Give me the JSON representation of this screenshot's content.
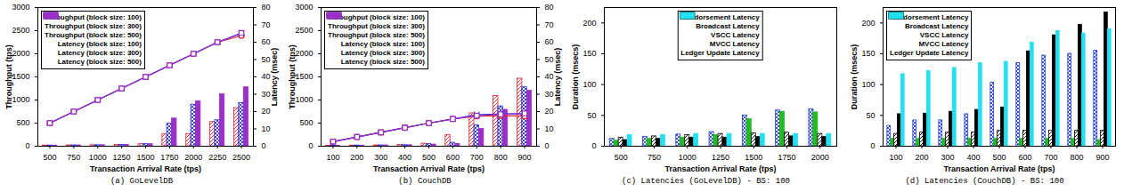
{
  "chart_data": [
    {
      "type": "line",
      "title": "(a) GoLevelDB",
      "x_label": "Transaction Arrival Rate (tps)",
      "y_label": "Throughput (tps)",
      "y2_label": "Latency (msec)",
      "categories": [
        "500",
        "750",
        "1000",
        "1250",
        "1500",
        "1750",
        "2000",
        "2250",
        "2500"
      ],
      "ylim": [
        0,
        3000
      ],
      "yticks": [
        0,
        500,
        1000,
        1500,
        2000,
        2500,
        3000
      ],
      "y2lim": [
        0,
        80
      ],
      "y2ticks": [
        0,
        10,
        20,
        30,
        40,
        50,
        60,
        70,
        80
      ],
      "legend": "top-left",
      "series": [
        {
          "name": "Throughput (block size: 100)",
          "type": "line",
          "marker": "circle",
          "color": "#e8202a",
          "values": [
            500,
            750,
            1000,
            1250,
            1500,
            1750,
            2000,
            2250,
            2390
          ]
        },
        {
          "name": "Throughput (block size: 300)",
          "type": "line",
          "marker": "x",
          "color": "#1c2ee0",
          "values": [
            500,
            750,
            1000,
            1250,
            1500,
            1750,
            2000,
            2250,
            2440
          ]
        },
        {
          "name": "Throughput (block size: 500)",
          "type": "line",
          "marker": "square",
          "color": "#9b30c8",
          "values": [
            500,
            750,
            1000,
            1250,
            1500,
            1750,
            2000,
            2250,
            2450
          ]
        },
        {
          "name": "Latency (block size: 100)",
          "type": "bar",
          "axis": "y2",
          "color": "#e8202a",
          "values": [
            0.4,
            0.5,
            0.6,
            0.8,
            1.2,
            7,
            7,
            14,
            22
          ]
        },
        {
          "name": "Latency (block size: 300)",
          "type": "bar",
          "axis": "y2",
          "color": "#1c2ee0",
          "values": [
            0.4,
            0.5,
            0.6,
            0.8,
            1.2,
            13,
            24,
            15,
            25
          ]
        },
        {
          "name": "Latency (block size: 500)",
          "type": "bar",
          "axis": "y2",
          "color": "#9b30c8",
          "values": [
            0.4,
            0.5,
            0.6,
            0.8,
            1.2,
            16,
            26,
            30,
            34
          ]
        }
      ]
    },
    {
      "type": "line",
      "title": "(b) CouchDB",
      "x_label": "Transaction Arrival Rate (tps)",
      "y_label": "Throughput (tps)",
      "y2_label": "Latency (msec)",
      "categories": [
        "100",
        "200",
        "300",
        "400",
        "500",
        "600",
        "700",
        "800",
        "900"
      ],
      "ylim": [
        0,
        3000
      ],
      "yticks": [
        0,
        500,
        1000,
        1500,
        2000,
        2500,
        3000
      ],
      "y2lim": [
        0,
        80
      ],
      "y2ticks": [
        0,
        10,
        20,
        30,
        40,
        50,
        60,
        70,
        80
      ],
      "legend": "top-left",
      "series": [
        {
          "name": "Throughput (block size: 100)",
          "type": "line",
          "marker": "circle",
          "color": "#e8202a",
          "values": [
            100,
            200,
            300,
            400,
            500,
            590,
            650,
            660,
            650
          ]
        },
        {
          "name": "Throughput (block size: 300)",
          "type": "line",
          "marker": "x",
          "color": "#1c2ee0",
          "values": [
            100,
            200,
            300,
            400,
            500,
            590,
            680,
            700,
            700
          ]
        },
        {
          "name": "Throughput (block size: 500)",
          "type": "line",
          "marker": "square",
          "color": "#9b30c8",
          "values": [
            100,
            200,
            300,
            400,
            500,
            590,
            660,
            690,
            710
          ]
        },
        {
          "name": "Latency (block size: 100)",
          "type": "bar",
          "axis": "y2",
          "color": "#e8202a",
          "values": [
            0.3,
            0.4,
            0.5,
            0.7,
            1.5,
            6.4,
            19,
            29,
            39
          ]
        },
        {
          "name": "Latency (block size: 300)",
          "type": "bar",
          "axis": "y2",
          "color": "#1c2ee0",
          "values": [
            0.3,
            0.4,
            0.5,
            0.6,
            1.2,
            2,
            12,
            23,
            34
          ]
        },
        {
          "name": "Latency (block size: 500)",
          "type": "bar",
          "axis": "y2",
          "color": "#9b30c8",
          "values": [
            0.3,
            0.4,
            0.5,
            0.6,
            1.0,
            1.3,
            10,
            21,
            32
          ]
        }
      ]
    },
    {
      "type": "bar",
      "title": "(c) Latencies (GoLevelDB) - BS: 100",
      "x_label": "Transaction Arrival Rate (tps)",
      "y_label": "Duration (msecs)",
      "categories": [
        "500",
        "750",
        "1000",
        "1250",
        "1500",
        "1750",
        "2000"
      ],
      "ylim": [
        0,
        225
      ],
      "yticks": [
        0,
        50,
        100,
        150,
        200
      ],
      "legend": "top",
      "series": [
        {
          "name": "Endorsement Latency",
          "color": "#2040d0",
          "values": [
            12,
            15,
            19,
            23,
            50,
            58,
            60
          ]
        },
        {
          "name": "Broadcast Latency",
          "color": "#22bb22",
          "values": [
            9,
            12,
            14,
            18,
            44,
            56,
            55
          ]
        },
        {
          "name": "VSCC Latency",
          "color": "#000000",
          "values": [
            14,
            16,
            18,
            20,
            21,
            22,
            20
          ]
        },
        {
          "name": "MVCC Latency",
          "color": "#000000",
          "values": [
            10,
            12,
            14,
            14,
            15,
            16,
            15
          ]
        },
        {
          "name": "Ledger Update Latency",
          "color": "#22e0f0",
          "values": [
            18,
            18,
            20,
            20,
            20,
            20,
            20
          ]
        }
      ]
    },
    {
      "type": "bar",
      "title": "(d) Latencies (CouchDB) - BS: 100",
      "x_label": "Transaction Arrival Rate (tps)",
      "y_label": "Duration (msecs)",
      "categories": [
        "100",
        "200",
        "300",
        "400",
        "500",
        "600",
        "700",
        "800",
        "900"
      ],
      "ylim": [
        0,
        225
      ],
      "yticks": [
        0,
        50,
        100,
        150,
        200
      ],
      "legend": "top-left",
      "series": [
        {
          "name": "Endorsement Latency",
          "color": "#2040d0",
          "values": [
            33,
            42,
            42,
            52,
            103,
            135,
            147,
            150,
            155
          ]
        },
        {
          "name": "Broadcast Latency",
          "color": "#22bb22",
          "values": [
            12,
            12,
            12,
            12,
            12,
            12,
            12,
            12,
            10
          ]
        },
        {
          "name": "VSCC Latency",
          "color": "#000000",
          "values": [
            20,
            22,
            22,
            22,
            25,
            25,
            25,
            25,
            25
          ]
        },
        {
          "name": "MVCC Latency",
          "color": "#000000",
          "values": [
            52,
            53,
            56,
            59,
            63,
            154,
            180,
            197,
            217
          ]
        },
        {
          "name": "Ledger Update Latency",
          "color": "#22e0f0",
          "values": [
            117,
            122,
            127,
            135,
            137,
            168,
            187,
            183,
            190
          ]
        }
      ]
    }
  ]
}
